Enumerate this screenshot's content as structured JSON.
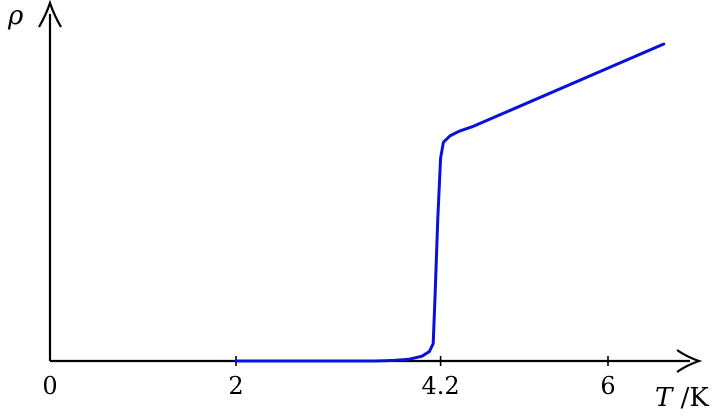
{
  "chart_data": {
    "type": "line",
    "title": "",
    "ylabel": "ρ",
    "xlabel_symbol": "T",
    "xlabel_unit": " /K",
    "xlim": [
      0,
      6.8
    ],
    "ylim": [
      0,
      1.0
    ],
    "x_ticks": [
      {
        "value": 0,
        "label": "0"
      },
      {
        "value": 2,
        "label": "2"
      },
      {
        "value": 4.2,
        "label": "4.2"
      },
      {
        "value": 6,
        "label": "6"
      }
    ],
    "grid": false,
    "legend": "none",
    "series": [
      {
        "color": "#0a10d9",
        "points": [
          [
            2.0,
            0.0
          ],
          [
            3.0,
            0.0
          ],
          [
            3.5,
            0.0
          ],
          [
            3.7,
            0.002
          ],
          [
            3.85,
            0.005
          ],
          [
            4.0,
            0.015
          ],
          [
            4.08,
            0.03
          ],
          [
            4.12,
            0.055
          ],
          [
            4.14,
            0.2
          ],
          [
            4.17,
            0.45
          ],
          [
            4.2,
            0.64
          ],
          [
            4.23,
            0.69
          ],
          [
            4.3,
            0.71
          ],
          [
            4.4,
            0.725
          ],
          [
            4.55,
            0.74
          ],
          [
            6.6,
            1.0
          ]
        ]
      }
    ]
  }
}
